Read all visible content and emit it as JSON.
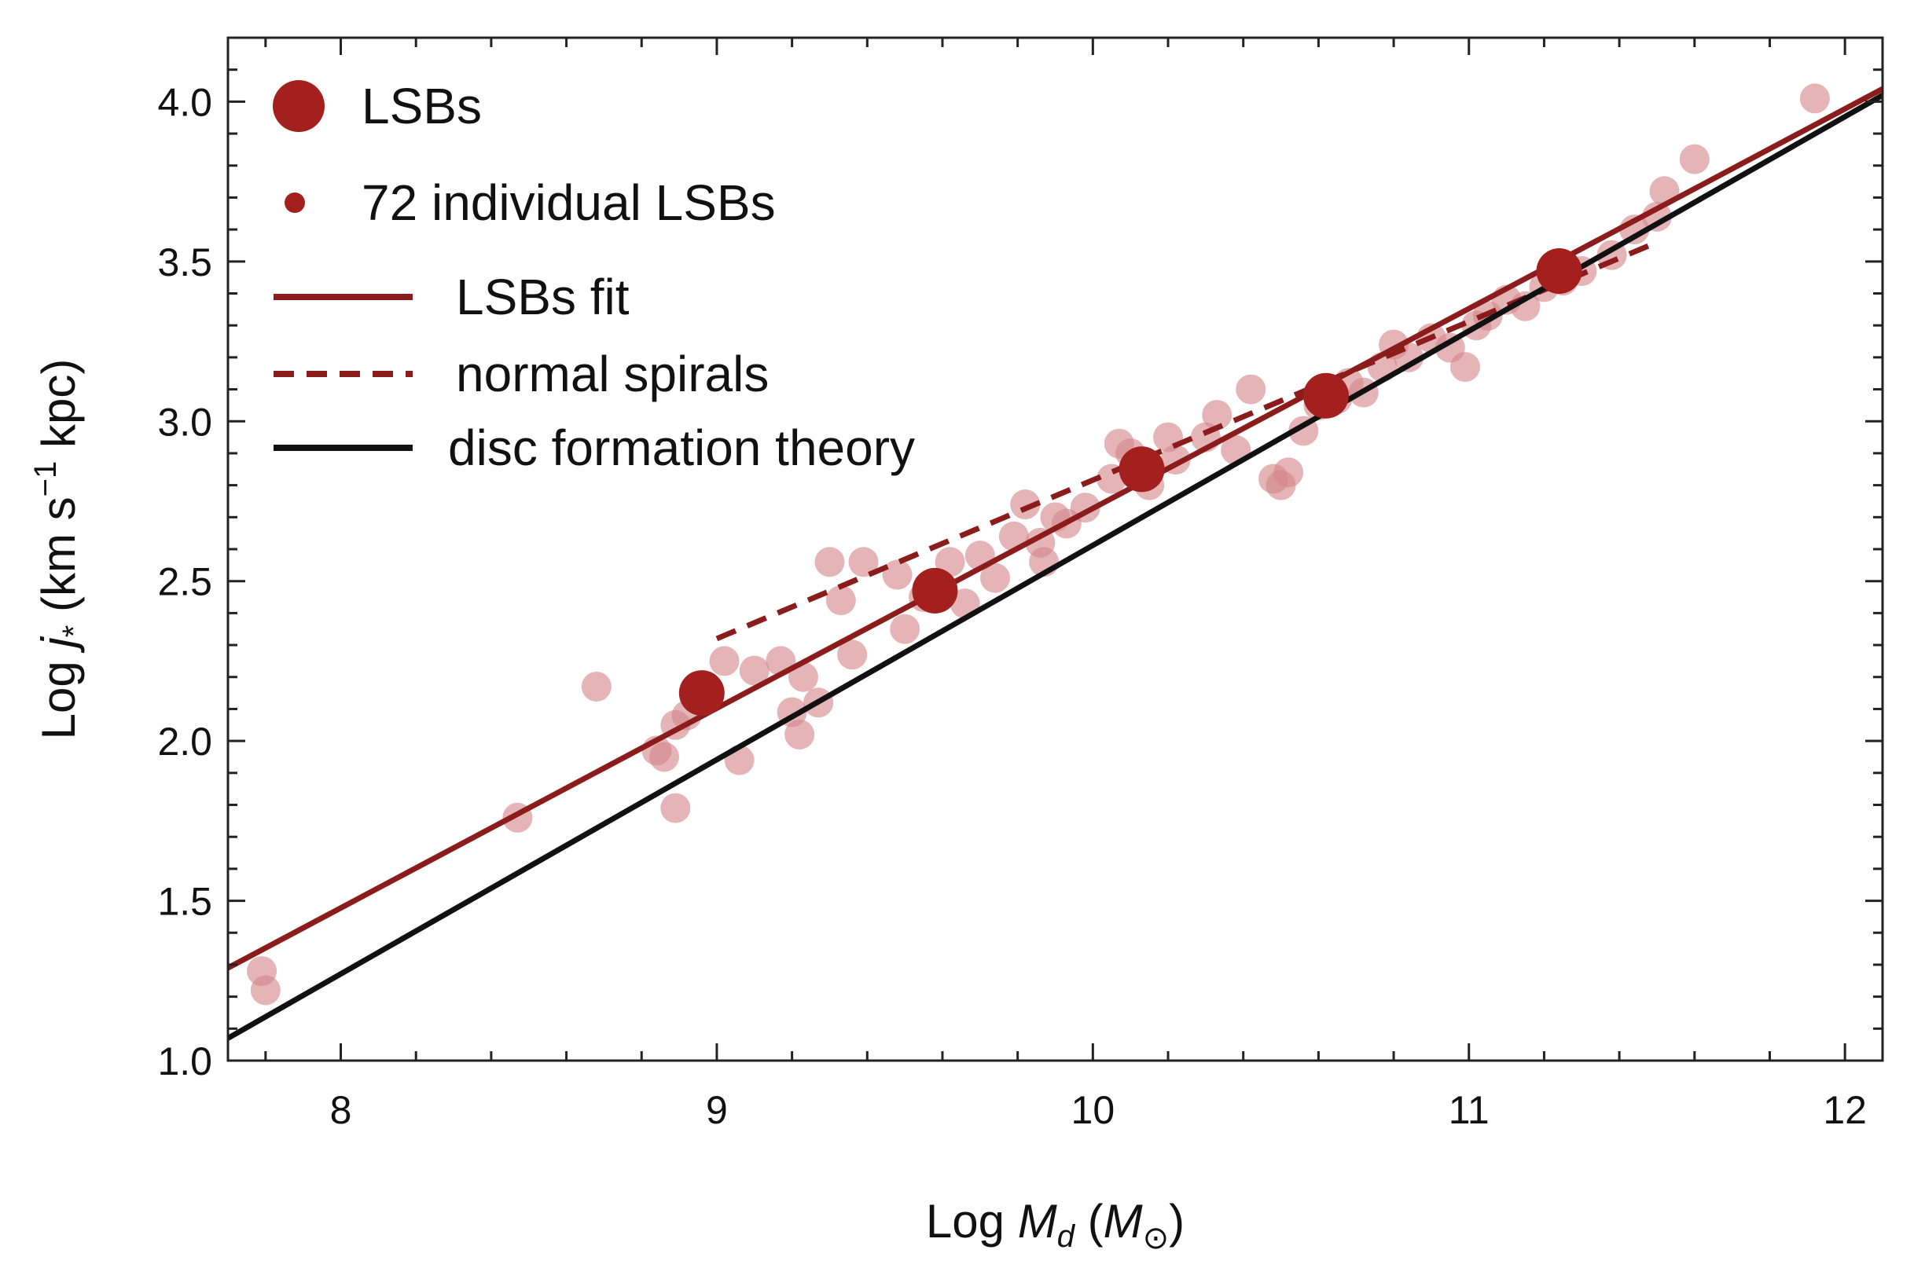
{
  "chart_data": {
    "type": "scatter",
    "title": "",
    "xlabel": {
      "prefix": "Log ",
      "var": "M",
      "sub": "d",
      "unit_open": " (",
      "unit_var": "M",
      "unit_sub": "⊙",
      "unit_close": ")"
    },
    "ylabel": {
      "prefix": "Log ",
      "var": "j",
      "sub": "*",
      "unit": " (km s",
      "sup": "−1",
      "unit_end": " kpc)"
    },
    "xlim": [
      7.7,
      12.1
    ],
    "ylim": [
      1.0,
      4.2
    ],
    "xticks": [
      8,
      9,
      10,
      11,
      12
    ],
    "xtick_labels": [
      "8",
      "9",
      "10",
      "11",
      "12"
    ],
    "yticks": [
      1.0,
      1.5,
      2.0,
      2.5,
      3.0,
      3.5,
      4.0
    ],
    "ytick_labels": [
      "1.0",
      "1.5",
      "2.0",
      "2.5",
      "3.0",
      "3.5",
      "4.0"
    ],
    "legend": {
      "position": "top-left",
      "entries": [
        {
          "label": "LSBs",
          "style": "big-dot"
        },
        {
          "label": "72 individual LSBs",
          "style": "small-dot"
        },
        {
          "label": "LSBs fit",
          "style": "solid-red"
        },
        {
          "label": "normal spirals",
          "style": "dashed-red"
        },
        {
          "label": "disc formation theory",
          "style": "solid-black"
        }
      ]
    },
    "colors": {
      "lsb": "#a3201f",
      "individual": "#d4868a",
      "fit": "#8b1c1c",
      "spirals": "#8b1c1c",
      "theory": "#111111"
    },
    "series": [
      {
        "name": "LSBs",
        "kind": "binned-points",
        "points": [
          [
            8.96,
            2.15
          ],
          [
            9.58,
            2.47
          ],
          [
            10.13,
            2.85
          ],
          [
            10.62,
            3.08
          ],
          [
            11.24,
            3.47
          ]
        ]
      },
      {
        "name": "72 individual LSBs",
        "kind": "points",
        "points": [
          [
            7.79,
            1.28
          ],
          [
            7.8,
            1.22
          ],
          [
            8.47,
            1.76
          ],
          [
            8.68,
            2.17
          ],
          [
            8.84,
            1.97
          ],
          [
            8.86,
            1.95
          ],
          [
            8.89,
            2.05
          ],
          [
            8.89,
            1.79
          ],
          [
            8.92,
            2.08
          ],
          [
            9.02,
            2.25
          ],
          [
            9.06,
            1.94
          ],
          [
            9.1,
            2.22
          ],
          [
            9.17,
            2.25
          ],
          [
            9.2,
            2.09
          ],
          [
            9.22,
            2.02
          ],
          [
            9.23,
            2.2
          ],
          [
            9.27,
            2.12
          ],
          [
            9.3,
            2.56
          ],
          [
            9.33,
            2.44
          ],
          [
            9.36,
            2.27
          ],
          [
            9.39,
            2.56
          ],
          [
            9.48,
            2.52
          ],
          [
            9.5,
            2.35
          ],
          [
            9.55,
            2.45
          ],
          [
            9.62,
            2.56
          ],
          [
            9.66,
            2.43
          ],
          [
            9.7,
            2.58
          ],
          [
            9.74,
            2.51
          ],
          [
            9.79,
            2.64
          ],
          [
            9.82,
            2.74
          ],
          [
            9.86,
            2.62
          ],
          [
            9.87,
            2.56
          ],
          [
            9.9,
            2.7
          ],
          [
            9.93,
            2.68
          ],
          [
            9.98,
            2.73
          ],
          [
            10.05,
            2.82
          ],
          [
            10.07,
            2.93
          ],
          [
            10.1,
            2.9
          ],
          [
            10.15,
            2.8
          ],
          [
            10.2,
            2.95
          ],
          [
            10.22,
            2.88
          ],
          [
            10.3,
            2.95
          ],
          [
            10.33,
            3.02
          ],
          [
            10.38,
            2.91
          ],
          [
            10.42,
            3.1
          ],
          [
            10.48,
            2.82
          ],
          [
            10.5,
            2.8
          ],
          [
            10.52,
            2.84
          ],
          [
            10.56,
            2.97
          ],
          [
            10.6,
            3.05
          ],
          [
            10.65,
            3.07
          ],
          [
            10.68,
            3.12
          ],
          [
            10.72,
            3.09
          ],
          [
            10.77,
            3.17
          ],
          [
            10.8,
            3.24
          ],
          [
            10.84,
            3.2
          ],
          [
            10.9,
            3.26
          ],
          [
            10.95,
            3.23
          ],
          [
            10.99,
            3.17
          ],
          [
            11.02,
            3.3
          ],
          [
            11.05,
            3.33
          ],
          [
            11.1,
            3.38
          ],
          [
            11.15,
            3.36
          ],
          [
            11.2,
            3.42
          ],
          [
            11.25,
            3.44
          ],
          [
            11.3,
            3.47
          ],
          [
            11.38,
            3.52
          ],
          [
            11.44,
            3.6
          ],
          [
            11.5,
            3.64
          ],
          [
            11.52,
            3.72
          ],
          [
            11.6,
            3.82
          ],
          [
            11.92,
            4.01
          ]
        ]
      },
      {
        "name": "LSBs fit",
        "kind": "line",
        "points": [
          [
            7.7,
            1.29
          ],
          [
            12.1,
            4.04
          ]
        ]
      },
      {
        "name": "normal spirals",
        "kind": "dashed-line",
        "points": [
          [
            9.0,
            2.32
          ],
          [
            11.5,
            3.56
          ]
        ]
      },
      {
        "name": "disc formation theory",
        "kind": "line",
        "points": [
          [
            7.7,
            1.07
          ],
          [
            12.1,
            4.02
          ]
        ]
      }
    ]
  }
}
